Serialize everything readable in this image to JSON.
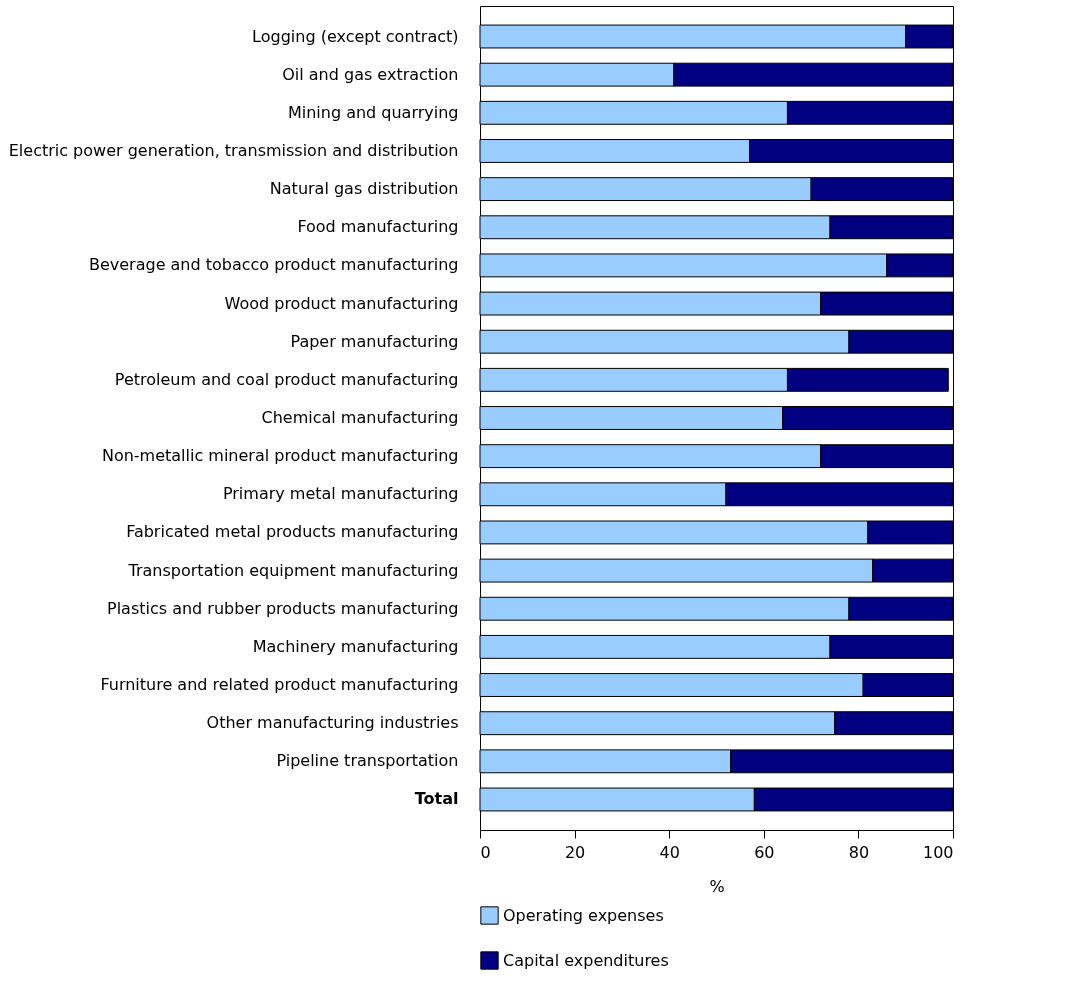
{
  "chart_data": {
    "type": "bar",
    "orientation": "horizontal",
    "stacked": true,
    "categories": [
      "Logging (except contract)",
      "Oil and gas extraction",
      "Mining and quarrying",
      "Electric power generation, transmission and distribution",
      "Natural gas distribution",
      "Food manufacturing",
      "Beverage and tobacco product manufacturing",
      "Wood product manufacturing",
      "Paper manufacturing",
      "Petroleum and coal product manufacturing",
      "Chemical manufacturing",
      "Non-metallic mineral product manufacturing",
      "Primary metal manufacturing",
      "Fabricated metal products manufacturing",
      "Transportation equipment manufacturing",
      "Plastics and rubber products manufacturing",
      "Machinery manufacturing",
      "Furniture and related product manufacturing",
      "Other manufacturing industries",
      "Pipeline transportation",
      "Total"
    ],
    "series": [
      {
        "name": "Operating expenses",
        "color": "#99ccff",
        "values": [
          90,
          41,
          65,
          57,
          70,
          74,
          86,
          72,
          78,
          65,
          64,
          72,
          52,
          82,
          83,
          78,
          74,
          81,
          75,
          53,
          58
        ]
      },
      {
        "name": "Capital expenditures",
        "color": "#000080",
        "values": [
          10,
          59,
          35,
          43,
          30,
          26,
          14,
          28,
          22,
          34,
          36,
          28,
          48,
          18,
          17,
          22,
          26,
          19,
          25,
          47,
          42
        ]
      }
    ],
    "xlabel": "%",
    "xlim": [
      0,
      100
    ],
    "xticks": [
      0,
      20,
      40,
      60,
      80,
      100
    ],
    "grid": false,
    "legend": "bottom"
  }
}
